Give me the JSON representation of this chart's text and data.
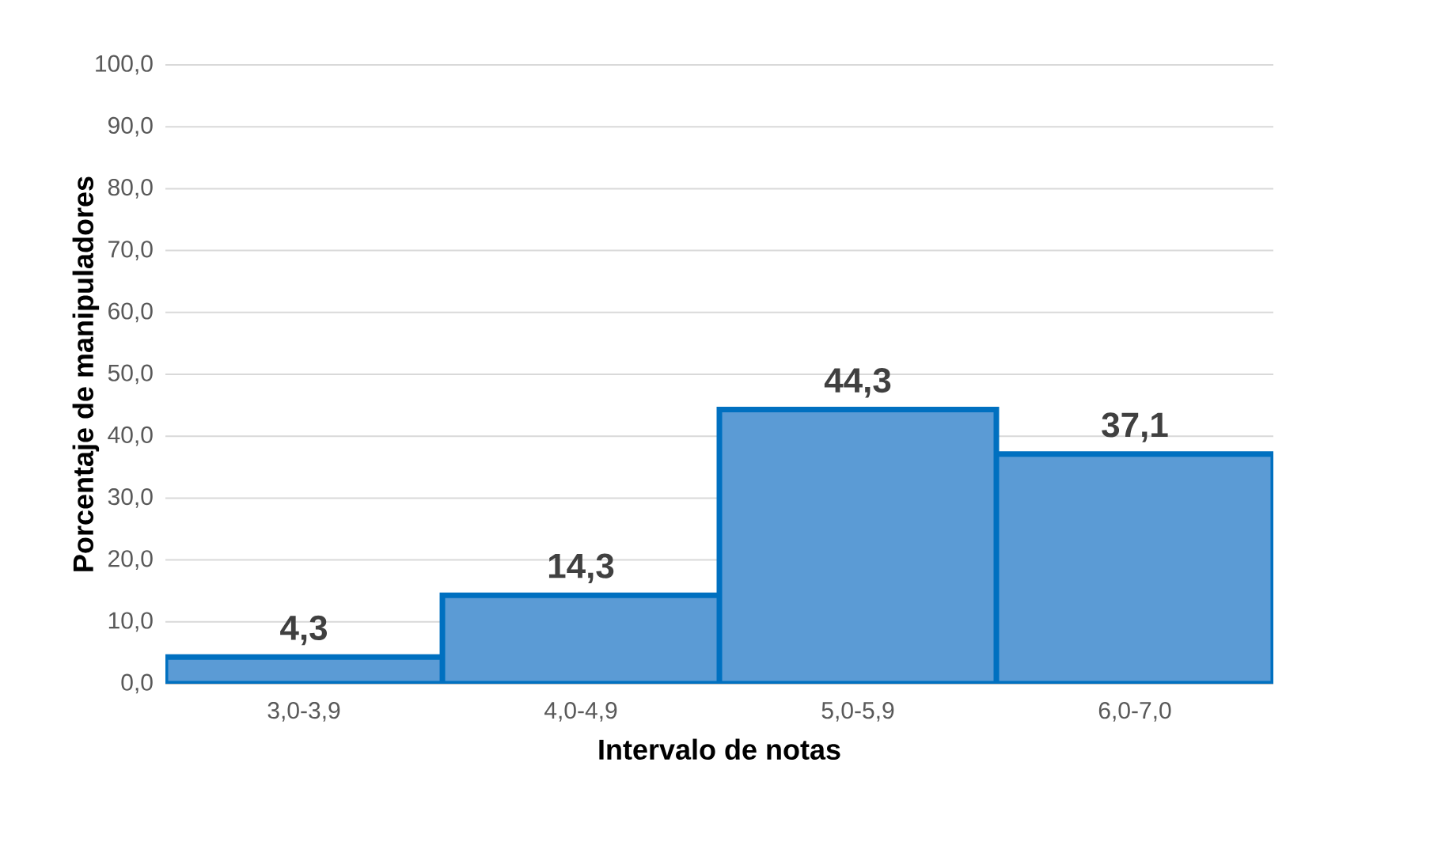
{
  "chart_data": {
    "type": "bar",
    "xlabel": "Intervalo de notas",
    "ylabel": "Porcentaje de manipuladores",
    "categories": [
      "3,0-3,9",
      "4,0-4,9",
      "5,0-5,9",
      "6,0-7,0"
    ],
    "values": [
      4.3,
      14.3,
      44.3,
      37.1
    ],
    "value_labels": [
      "4,3",
      "14,3",
      "44,3",
      "37,1"
    ],
    "color": "#5b9bd5",
    "ylim": [
      0,
      100
    ],
    "yticks": [
      {
        "value": 0,
        "label": "0,0"
      },
      {
        "value": 10,
        "label": "10,0"
      },
      {
        "value": 20,
        "label": "20,0"
      },
      {
        "value": 30,
        "label": "30,0"
      },
      {
        "value": 40,
        "label": "40,0"
      },
      {
        "value": 50,
        "label": "50,0"
      },
      {
        "value": 60,
        "label": "60,0"
      },
      {
        "value": 70,
        "label": "70,0"
      },
      {
        "value": 80,
        "label": "80,0"
      },
      {
        "value": 90,
        "label": "90,0"
      },
      {
        "value": 100,
        "label": "100,0"
      }
    ],
    "grid": "y"
  }
}
